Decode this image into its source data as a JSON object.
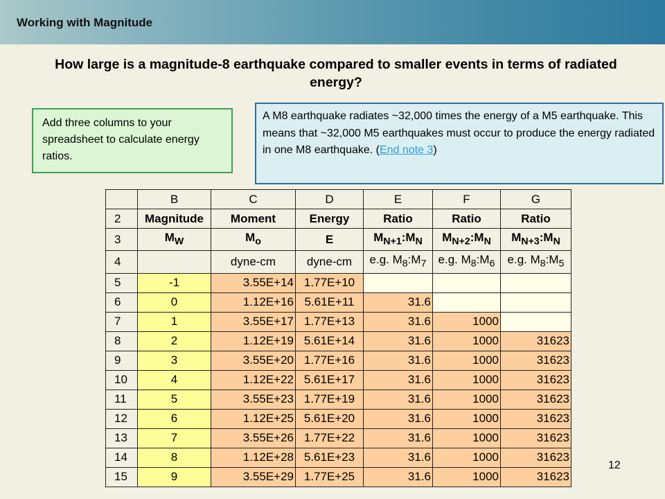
{
  "header": {
    "title": "Working with Magnitude"
  },
  "question": "How large is a magnitude-8 earthquake compared to smaller events in terms of radiated energy?",
  "instruction": "Add three columns to your spreadsheet to calculate energy ratios.",
  "note": {
    "text_before": "A M8 earthquake radiates ~32,000 times the energy of a M5 earthquake.  This means that ~32,000 M5 earthquakes must occur to produce the energy radiated in one M8 earthquake. (",
    "link": "End note 3",
    "text_after": ")"
  },
  "sheet": {
    "col_headers": [
      "B",
      "C",
      "D",
      "E",
      "F",
      "G"
    ],
    "label_row": {
      "row": "2",
      "cells": [
        "Magnitude",
        "Moment",
        "Energy",
        "Ratio",
        "Ratio",
        "Ratio"
      ]
    },
    "symbol_row": {
      "row": "3",
      "cells": [
        "M",
        "M",
        "E",
        "M",
        "M",
        "M"
      ]
    },
    "unit_row": {
      "row": "4",
      "cells": [
        "",
        "dyne-cm",
        "dyne-cm",
        "e.g. M",
        "e.g. M",
        "e.g. M"
      ]
    },
    "rows": [
      {
        "row": "5",
        "mag": "-1",
        "moment": "3.55E+14",
        "energy": "1.77E+10",
        "r1": "",
        "r2": "",
        "r3": ""
      },
      {
        "row": "6",
        "mag": "0",
        "moment": "1.12E+16",
        "energy": "5.61E+11",
        "r1": "31.6",
        "r2": "",
        "r3": ""
      },
      {
        "row": "7",
        "mag": "1",
        "moment": "3.55E+17",
        "energy": "1.77E+13",
        "r1": "31.6",
        "r2": "1000",
        "r3": ""
      },
      {
        "row": "8",
        "mag": "2",
        "moment": "1.12E+19",
        "energy": "5.61E+14",
        "r1": "31.6",
        "r2": "1000",
        "r3": "31623"
      },
      {
        "row": "9",
        "mag": "3",
        "moment": "3.55E+20",
        "energy": "1.77E+16",
        "r1": "31.6",
        "r2": "1000",
        "r3": "31623"
      },
      {
        "row": "10",
        "mag": "4",
        "moment": "1.12E+22",
        "energy": "5.61E+17",
        "r1": "31.6",
        "r2": "1000",
        "r3": "31623"
      },
      {
        "row": "11",
        "mag": "5",
        "moment": "3.55E+23",
        "energy": "1.77E+19",
        "r1": "31.6",
        "r2": "1000",
        "r3": "31623"
      },
      {
        "row": "12",
        "mag": "6",
        "moment": "1.12E+25",
        "energy": "5.61E+20",
        "r1": "31.6",
        "r2": "1000",
        "r3": "31623"
      },
      {
        "row": "13",
        "mag": "7",
        "moment": "3.55E+26",
        "energy": "1.77E+22",
        "r1": "31.6",
        "r2": "1000",
        "r3": "31623"
      },
      {
        "row": "14",
        "mag": "8",
        "moment": "1.12E+28",
        "energy": "5.61E+23",
        "r1": "31.6",
        "r2": "1000",
        "r3": "31623"
      },
      {
        "row": "15",
        "mag": "9",
        "moment": "3.55E+29",
        "energy": "1.77E+25",
        "r1": "31.6",
        "r2": "1000",
        "r3": "31623"
      }
    ]
  },
  "page_number": "12",
  "colors": {
    "header_start": "#aac8c8",
    "header_end": "#2d7aa0",
    "magnitude_fill": "#fefe99",
    "value_fill": "#fdcf9e",
    "instruction_fill": "#dcf5d4",
    "note_fill": "#dbeef1"
  }
}
